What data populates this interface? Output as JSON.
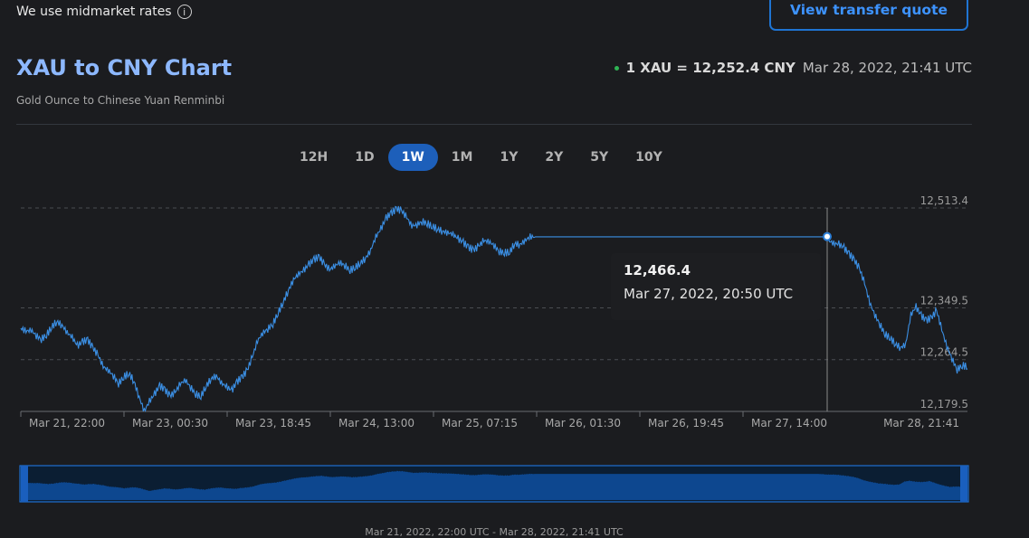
{
  "header": {
    "midmarket_text": "We use midmarket rates",
    "info_icon": "info-circle-icon",
    "quote_button": "View transfer quote",
    "title": "XAU to CNY Chart",
    "subtitle": "Gold Ounce to Chinese Yuan Renminbi",
    "rate": "1 XAU = 12,252.4 CNY",
    "rate_time": "Mar 28, 2022, 21:41 UTC"
  },
  "tabs": [
    {
      "label": "12H",
      "active": false
    },
    {
      "label": "1D",
      "active": false
    },
    {
      "label": "1W",
      "active": true
    },
    {
      "label": "1M",
      "active": false
    },
    {
      "label": "1Y",
      "active": false
    },
    {
      "label": "2Y",
      "active": false
    },
    {
      "label": "5Y",
      "active": false
    },
    {
      "label": "10Y",
      "active": false
    }
  ],
  "tooltip": {
    "value": "12,466.4",
    "time": "Mar 27, 2022, 20:50 UTC"
  },
  "range_label": "Mar 21, 2022, 22:00 UTC - Mar 28, 2022, 21:41 UTC",
  "colors": {
    "line": "#3b8fe4",
    "accent": "#1d5fba",
    "navigator_fill": "#0d478f",
    "live_dot": "#2fb454"
  },
  "chart_data": {
    "type": "line",
    "series": [
      {
        "values": [
          12316,
          12311,
          12313,
          12304,
          12298,
          12305,
          12318,
          12327,
          12321,
          12309,
          12301,
          12287,
          12294,
          12297,
          12284,
          12272,
          12253,
          12247,
          12238,
          12225,
          12236,
          12242,
          12229,
          12203,
          12180,
          12196,
          12208,
          12222,
          12215,
          12205,
          12211,
          12225,
          12231,
          12219,
          12208,
          12204,
          12221,
          12233,
          12238,
          12226,
          12220,
          12214,
          12228,
          12236,
          12247,
          12269,
          12295,
          12308,
          12315,
          12323,
          12341,
          12359,
          12378,
          12396,
          12405,
          12411,
          12421,
          12429,
          12433,
          12421,
          12412,
          12418,
          12424,
          12419,
          12411,
          12416,
          12423,
          12431,
          12444,
          12466,
          12479,
          12497,
          12505,
          12512,
          12509,
          12498,
          12484,
          12486,
          12491,
          12488,
          12483,
          12479,
          12475,
          12473,
          12470,
          12463,
          12457,
          12449,
          12444,
          12451,
          12460,
          12458,
          12452,
          12442,
          12440,
          12441,
          12455,
          12453,
          12460,
          12466,
          12466,
          12466,
          12466,
          12466,
          12466,
          12466,
          12466,
          12466,
          12466,
          12466,
          12466,
          12466,
          12466,
          12466,
          12466,
          12466,
          12466,
          12466,
          12466,
          12466,
          12466,
          12466,
          12466,
          12466,
          12466,
          12466,
          12466,
          12466,
          12466,
          12466,
          12466,
          12466,
          12466,
          12466,
          12466,
          12466,
          12466,
          12466,
          12466,
          12466,
          12466,
          12466,
          12466,
          12466,
          12466,
          12466,
          12466,
          12466,
          12466,
          12466,
          12466,
          12466,
          12466,
          12466,
          12466,
          12466,
          12466,
          12460,
          12455,
          12454,
          12448,
          12438,
          12428,
          12414,
          12390,
          12358,
          12338,
          12322,
          12306,
          12300,
          12290,
          12284,
          12290,
          12338,
          12351,
          12337,
          12329,
          12333,
          12345,
          12314,
          12286,
          12266,
          12248,
          12255,
          12253
        ],
        "x_start": "Mar 21, 22:00",
        "x_end": "Mar 28, 21:41"
      }
    ],
    "x_tick_labels": [
      "Mar 21, 22:00",
      "Mar 23, 00:30",
      "Mar 23, 18:45",
      "Mar 24, 13:00",
      "Mar 25, 07:15",
      "Mar 26, 01:30",
      "Mar 26, 19:45",
      "Mar 27, 14:00",
      "Mar 28, 21:41"
    ],
    "y_ticks": [
      {
        "label": "12,513.4",
        "value": 12513.4
      },
      {
        "label": "12,349.5",
        "value": 12349.5
      },
      {
        "label": "12,264.5",
        "value": 12264.5
      },
      {
        "label": "12,179.5",
        "value": 12179.5
      }
    ],
    "ylim": [
      12179.5,
      12513.4
    ],
    "highlight": {
      "value": 12466.4,
      "time": "Mar 27, 2022, 20:50 UTC",
      "index": 107
    },
    "grid": true,
    "navigator": true
  }
}
